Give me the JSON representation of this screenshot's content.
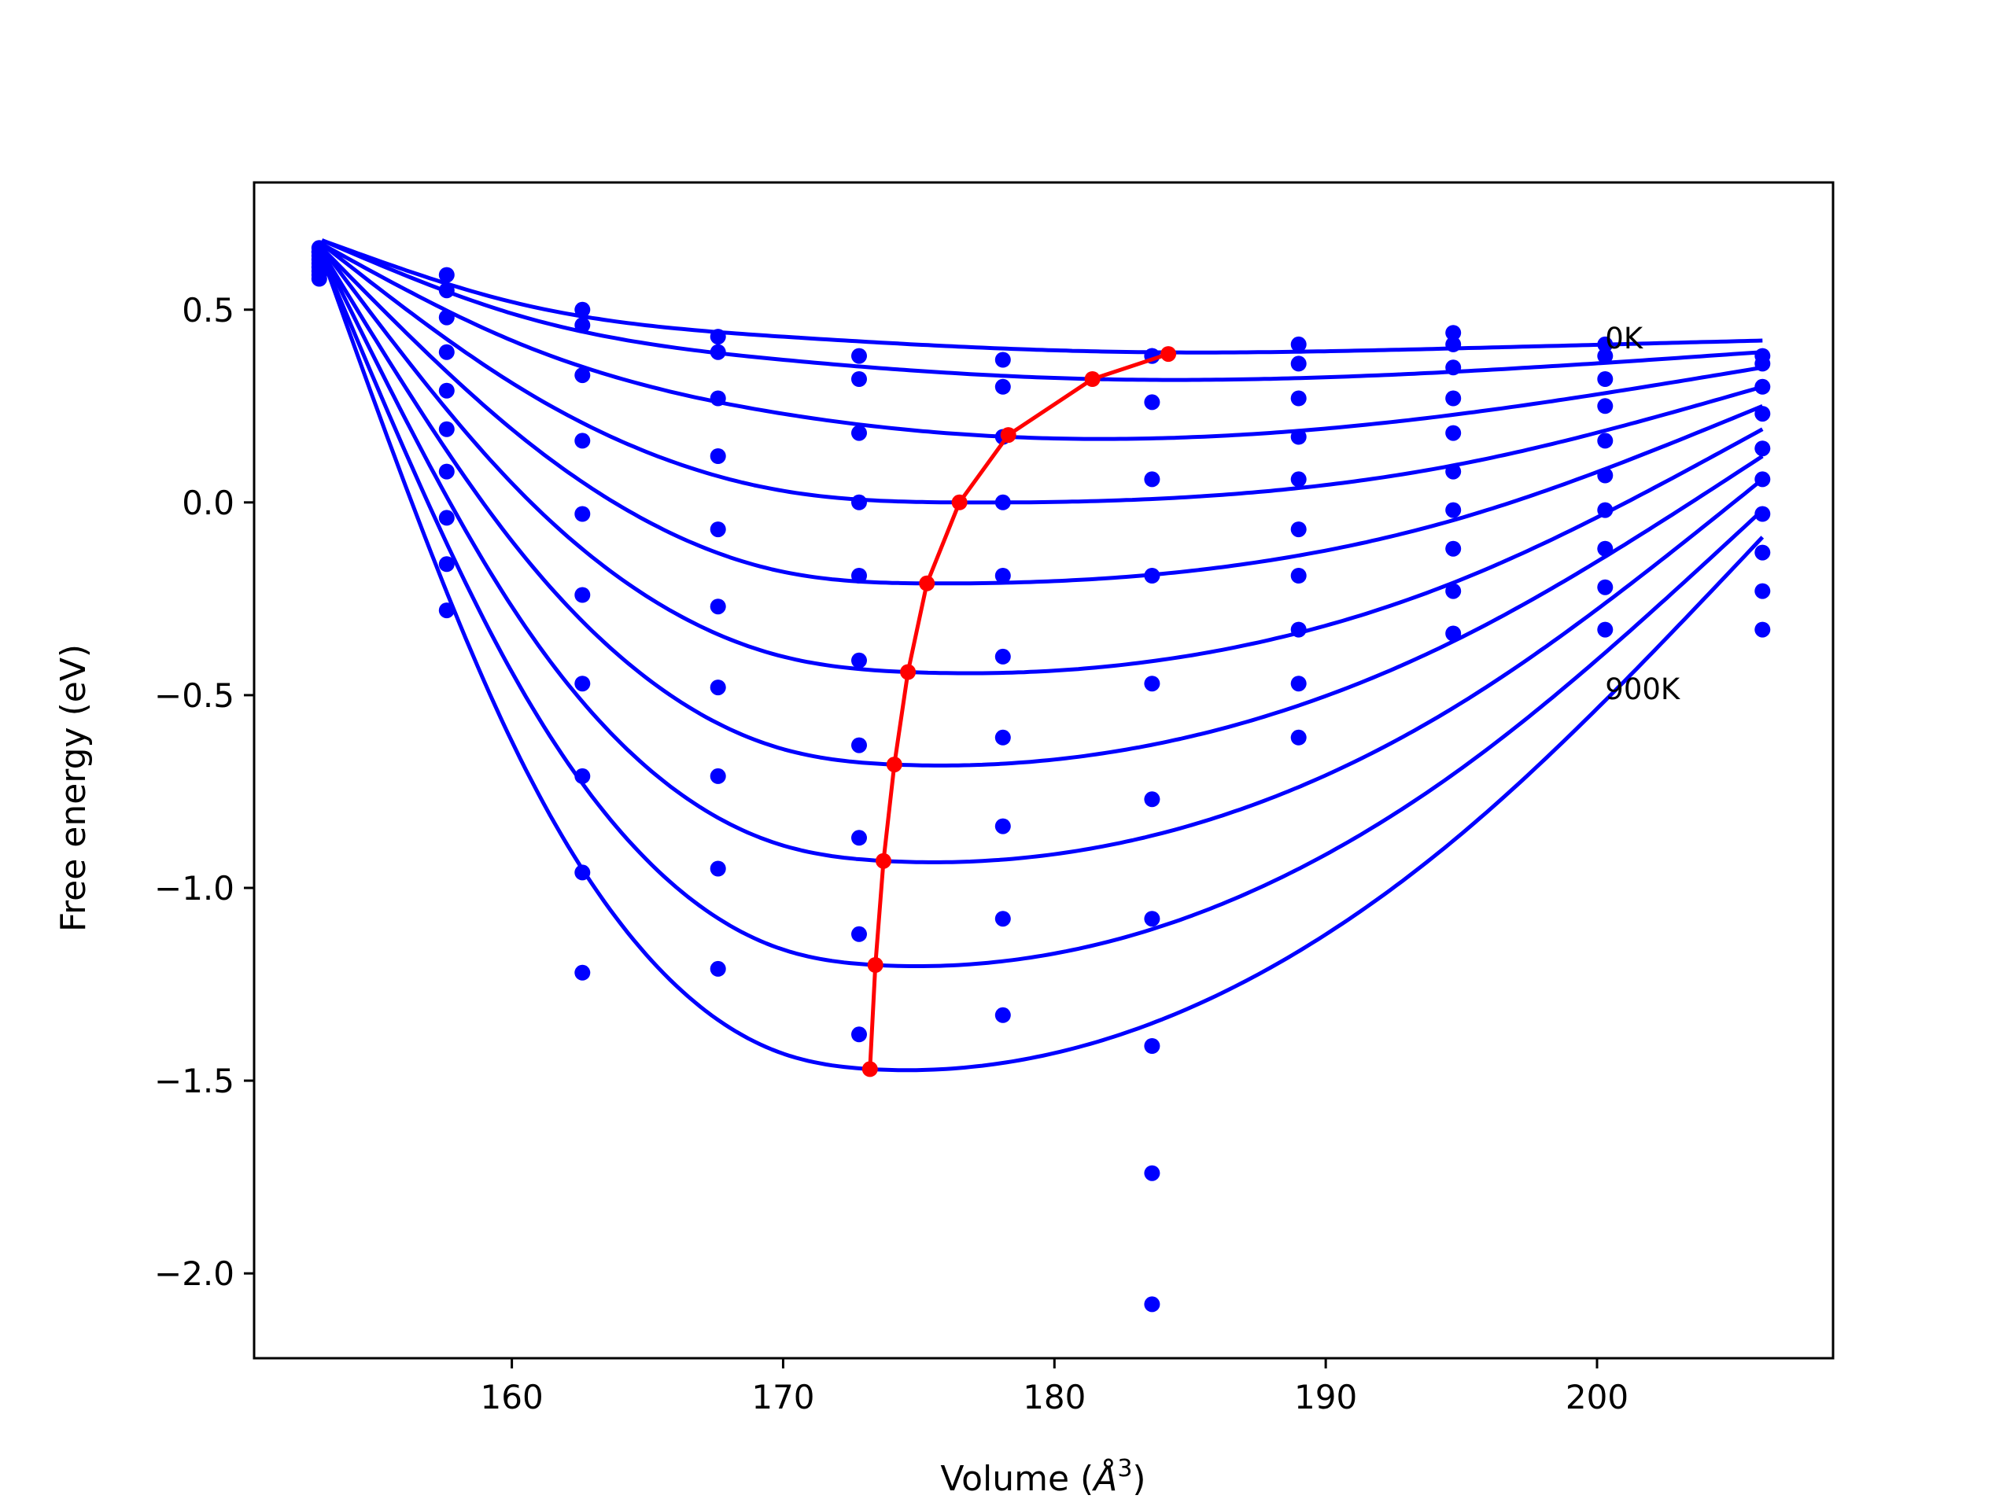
{
  "chart_data": {
    "type": "line",
    "xlabel": "Volume (",
    "xlabel_symbol": "Å",
    "xlabel_exponent": "3",
    "xlabel_close": ")",
    "ylabel": "Free energy (eV)",
    "xlim": [
      150.5,
      208.7
    ],
    "ylim": [
      -2.22,
      0.83
    ],
    "xticks": [
      160,
      170,
      180,
      190,
      200
    ],
    "xtick_labels": [
      "160",
      "170",
      "180",
      "190",
      "200"
    ],
    "yticks": [
      0.5,
      0.0,
      -0.5,
      -1.0,
      -1.5,
      -2.0
    ],
    "ytick_labels": [
      "0.5",
      "0.0",
      "−0.5",
      "−1.0",
      "−1.5",
      "−2.0"
    ],
    "grid": false,
    "annotations": [
      {
        "text": "0K",
        "x": 200.3,
        "y": 0.4
      },
      {
        "text": "900K",
        "x": 200.3,
        "y": -0.51
      }
    ],
    "colors": {
      "curves": "#0000ff",
      "points": "#0000ff",
      "minima": "#ff0000"
    },
    "volumes": [
      152.9,
      157.6,
      162.6,
      167.6,
      172.8,
      178.1,
      183.6,
      189.0,
      194.7,
      200.3,
      206.1
    ],
    "point_series": [
      [
        0.66,
        0.59,
        0.5,
        0.43,
        0.38,
        0.37,
        0.38,
        0.41,
        0.44,
        0.41,
        0.38
      ],
      [
        0.65,
        0.55,
        0.46,
        0.39,
        0.32,
        0.3,
        0.38,
        0.36,
        0.41,
        0.38,
        0.36
      ],
      [
        0.65,
        0.48,
        0.33,
        0.27,
        0.18,
        0.17,
        0.26,
        0.27,
        0.35,
        0.32,
        0.3
      ],
      [
        0.64,
        0.39,
        0.16,
        0.12,
        0.0,
        0.0,
        0.06,
        0.17,
        0.27,
        0.25,
        0.23
      ],
      [
        0.63,
        0.29,
        -0.03,
        -0.07,
        -0.19,
        -0.19,
        -0.19,
        0.06,
        0.18,
        0.16,
        0.14
      ],
      [
        0.62,
        0.19,
        -0.24,
        -0.27,
        -0.41,
        -0.4,
        -0.47,
        -0.07,
        0.08,
        0.07,
        0.06
      ],
      [
        0.61,
        0.08,
        -0.47,
        -0.48,
        -0.63,
        -0.61,
        -0.77,
        -0.19,
        -0.02,
        -0.02,
        -0.03
      ],
      [
        0.6,
        -0.04,
        -0.71,
        -0.71,
        -0.87,
        -0.84,
        -1.08,
        -0.33,
        -0.12,
        -0.12,
        -0.13
      ],
      [
        0.59,
        -0.16,
        -0.96,
        -0.95,
        -1.12,
        -1.08,
        -1.41,
        -0.47,
        -0.23,
        -0.22,
        -0.23
      ],
      [
        0.58,
        -0.28,
        -1.22,
        -1.21,
        -1.38,
        -1.33,
        -1.74,
        -0.61,
        -0.34,
        -0.33,
        -0.33
      ]
    ],
    "extra_points": [
      {
        "x": 183.6,
        "y": -2.08
      }
    ],
    "fit_curves": [
      {
        "x": [
          153.0,
          160.0,
          170.0,
          183.0,
          195.0,
          206.1
        ],
        "y": [
          0.68,
          0.52,
          0.43,
          0.39,
          0.4,
          0.42
        ]
      },
      {
        "x": [
          153.0,
          160.0,
          170.0,
          181.5,
          195.0,
          206.1
        ],
        "y": [
          0.68,
          0.49,
          0.37,
          0.32,
          0.34,
          0.39
        ]
      },
      {
        "x": [
          153.0,
          160.0,
          170.0,
          178.3,
          195.0,
          206.1
        ],
        "y": [
          0.67,
          0.42,
          0.23,
          0.17,
          0.23,
          0.35
        ]
      },
      {
        "x": [
          153.0,
          160.0,
          170.0,
          176.5,
          195.0,
          206.1
        ],
        "y": [
          0.67,
          0.31,
          0.03,
          0.0,
          0.1,
          0.3
        ]
      },
      {
        "x": [
          153.0,
          160.0,
          170.0,
          175.3,
          195.0,
          206.1
        ],
        "y": [
          0.66,
          0.19,
          -0.18,
          -0.21,
          -0.04,
          0.25
        ]
      },
      {
        "x": [
          153.0,
          160.0,
          170.0,
          174.6,
          195.0,
          206.1
        ],
        "y": [
          0.66,
          0.05,
          -0.4,
          -0.44,
          -0.2,
          0.19
        ]
      },
      {
        "x": [
          153.0,
          160.0,
          170.0,
          174.1,
          195.0,
          206.1
        ],
        "y": [
          0.65,
          -0.1,
          -0.64,
          -0.68,
          -0.35,
          0.12
        ]
      },
      {
        "x": [
          153.0,
          160.0,
          170.0,
          173.7,
          195.0,
          206.1
        ],
        "y": [
          0.65,
          -0.27,
          -0.89,
          -0.93,
          -0.52,
          0.06
        ]
      },
      {
        "x": [
          153.0,
          160.0,
          170.0,
          173.4,
          195.0,
          206.1
        ],
        "y": [
          0.64,
          -0.44,
          -1.16,
          -1.2,
          -0.69,
          -0.02
        ]
      },
      {
        "x": [
          153.0,
          160.0,
          170.0,
          173.2,
          195.0,
          206.1
        ],
        "y": [
          0.64,
          -0.62,
          -1.43,
          -1.47,
          -0.86,
          -0.09
        ]
      }
    ],
    "minima_line": {
      "x": [
        184.2,
        181.4,
        178.3,
        176.5,
        175.3,
        174.6,
        174.1,
        173.7,
        173.4,
        173.2
      ],
      "y": [
        0.385,
        0.32,
        0.175,
        0.0,
        -0.21,
        -0.44,
        -0.68,
        -0.93,
        -1.2,
        -1.47
      ]
    }
  }
}
